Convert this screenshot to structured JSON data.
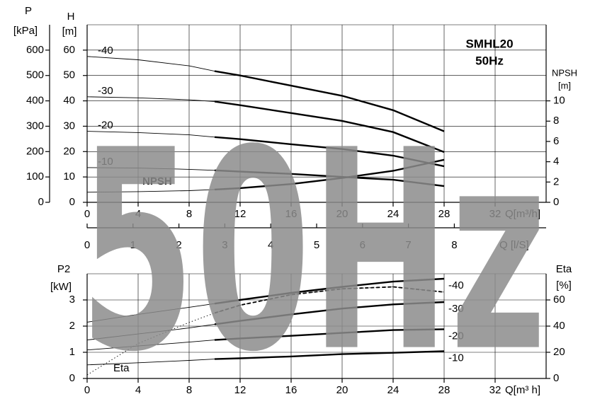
{
  "chart_data": [
    {
      "type": "line",
      "title": "SMHL20",
      "subtitle": "50Hz",
      "watermark": "50Hz",
      "x_label": "Q[m³/h]",
      "xlim": [
        0,
        36
      ],
      "xticks": [
        0,
        4,
        8,
        12,
        16,
        20,
        24,
        28,
        32
      ],
      "x2_label": "Q [l/S]",
      "x2lim": [
        0,
        10
      ],
      "x2ticks": [
        0,
        1,
        2,
        3,
        4,
        5,
        6,
        7,
        8
      ],
      "y_label": "H",
      "y_unit": "[m]",
      "ylim": [
        0,
        70
      ],
      "yticks": [
        0,
        10,
        20,
        30,
        40,
        50,
        60
      ],
      "p_label": "P",
      "p_unit": "[kPa]",
      "plim": [
        0,
        700
      ],
      "pticks": [
        0,
        100,
        200,
        300,
        400,
        500,
        600
      ],
      "y2_label": "NPSH",
      "y2_unit": "[m]",
      "y2lim": [
        0,
        17.5
      ],
      "y2ticks": [
        0,
        2,
        4,
        6,
        8,
        10
      ],
      "grid": true,
      "operating_range": [
        10,
        28
      ],
      "x": [
        0,
        4,
        8,
        10,
        12,
        16,
        20,
        24,
        28
      ],
      "series": [
        {
          "name": "-40",
          "color": "#000000",
          "values": [
            57.5,
            56.2,
            53.8,
            51.7,
            50,
            46,
            42,
            36.3,
            28
          ]
        },
        {
          "name": "-30",
          "color": "#000000",
          "values": [
            41.6,
            41.2,
            40.4,
            39.7,
            38.3,
            35.2,
            32.1,
            27.7,
            19.8
          ]
        },
        {
          "name": "-20",
          "color": "#000000",
          "values": [
            28,
            27.5,
            26.6,
            25.7,
            24.9,
            22.9,
            21,
            18.4,
            14.2
          ]
        },
        {
          "name": "-10",
          "color": "#000000",
          "values": [
            13.7,
            13.5,
            13,
            12.6,
            12.1,
            11.2,
            10,
            8.9,
            6.4
          ]
        },
        {
          "name": "NPSH",
          "color": "#000000",
          "axis": "y2",
          "values": [
            1,
            1.05,
            1.15,
            1.26,
            1.4,
            1.8,
            2.4,
            3.1,
            4.2
          ]
        }
      ]
    },
    {
      "type": "line",
      "x_label": "Q[m³ h]",
      "xlim": [
        0,
        36
      ],
      "xticks": [
        0,
        4,
        8,
        12,
        16,
        20,
        24,
        28,
        32
      ],
      "y_label": "P2",
      "y_unit": "[kW]",
      "ylim": [
        0,
        4
      ],
      "yticks": [
        0,
        1,
        2,
        3
      ],
      "y2_label": "Eta",
      "y2_unit": "[%]",
      "y2lim": [
        0,
        80
      ],
      "y2ticks": [
        0,
        20,
        40,
        60
      ],
      "grid": true,
      "operating_range": [
        10,
        28
      ],
      "x": [
        0,
        4,
        8,
        10,
        12,
        16,
        20,
        24,
        28
      ],
      "series": [
        {
          "name": "-40",
          "color": "#000000",
          "values": [
            2.15,
            2.45,
            2.72,
            2.86,
            3,
            3.27,
            3.5,
            3.7,
            3.81
          ]
        },
        {
          "name": "-30",
          "color": "#000000",
          "values": [
            1.47,
            1.7,
            1.93,
            2.07,
            2.2,
            2.45,
            2.67,
            2.83,
            2.92
          ]
        },
        {
          "name": "-20",
          "color": "#000000",
          "values": [
            1.09,
            1.24,
            1.39,
            1.47,
            1.53,
            1.63,
            1.74,
            1.85,
            1.88
          ]
        },
        {
          "name": "-10",
          "color": "#000000",
          "values": [
            0.52,
            0.6,
            0.69,
            0.74,
            0.77,
            0.84,
            0.93,
            0.98,
            1.04
          ]
        },
        {
          "name": "Eta",
          "color": "#000000",
          "axis": "y2",
          "dashed": true,
          "values": [
            2.7,
            26.7,
            42.8,
            50,
            56,
            64,
            68.5,
            70,
            66
          ]
        }
      ]
    }
  ]
}
